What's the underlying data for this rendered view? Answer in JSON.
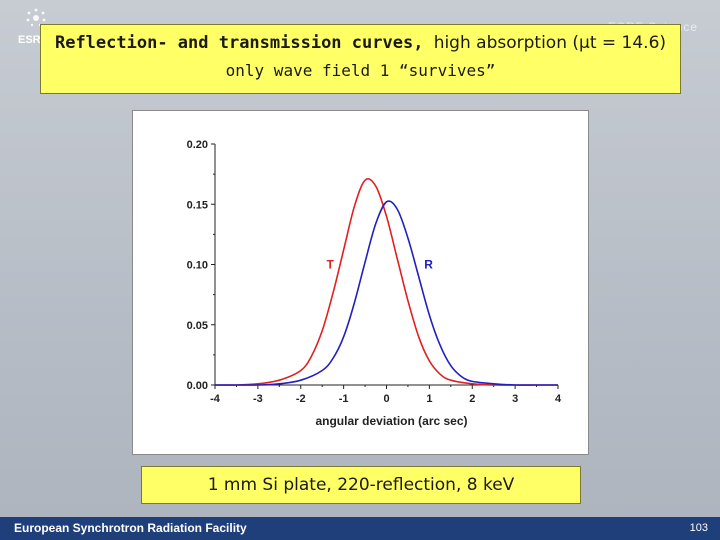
{
  "header": {
    "logo_text": "ESRF",
    "banner_text": "ESRF Science"
  },
  "title": {
    "line1_bold": "Reflection- and transmission curves,",
    "line1_plain": "high absorption (μt = 14.6)",
    "line2": "only wave field 1 “survives”"
  },
  "caption": "1 mm Si plate, 220-reflection, 8 keV",
  "footer": {
    "text": "European Synchrotron Radiation Facility",
    "page_number": "103"
  },
  "colors": {
    "T": "#e02020",
    "R": "#2020c0",
    "title_bg": "#ffff66",
    "footer_bg": "#1f3f7a"
  },
  "chart_data": {
    "type": "line",
    "title": "",
    "xlabel": "angular deviation (arc sec)",
    "ylabel": "",
    "xlim": [
      -4,
      4
    ],
    "ylim": [
      0,
      0.2
    ],
    "x_ticks": [
      "-4",
      "-3",
      "-2",
      "-1",
      "0",
      "1",
      "2",
      "3",
      "4"
    ],
    "y_ticks": [
      "0.00",
      "0.05",
      "0.10",
      "0.15",
      "0.20"
    ],
    "series": [
      {
        "name": "T",
        "x": [
          -4.0,
          -3.5,
          -3.0,
          -2.5,
          -2.0,
          -1.75,
          -1.5,
          -1.25,
          -1.0,
          -0.75,
          -0.5,
          -0.25,
          0.0,
          0.25,
          0.5,
          0.75,
          1.0,
          1.25,
          1.5,
          2.0,
          2.5,
          3.0,
          3.5,
          4.0
        ],
        "values": [
          0.0,
          0.0,
          0.001,
          0.004,
          0.012,
          0.024,
          0.045,
          0.076,
          0.112,
          0.148,
          0.17,
          0.165,
          0.14,
          0.105,
          0.07,
          0.04,
          0.02,
          0.009,
          0.004,
          0.001,
          0.0,
          0.0,
          0.0,
          0.0
        ]
      },
      {
        "name": "R",
        "x": [
          -4.0,
          -3.5,
          -3.0,
          -2.5,
          -2.0,
          -1.5,
          -1.25,
          -1.0,
          -0.75,
          -0.5,
          -0.25,
          0.0,
          0.25,
          0.5,
          0.75,
          1.0,
          1.25,
          1.5,
          1.75,
          2.0,
          2.5,
          3.0,
          3.5,
          4.0
        ],
        "values": [
          0.0,
          0.0,
          0.0,
          0.001,
          0.004,
          0.012,
          0.022,
          0.04,
          0.068,
          0.102,
          0.134,
          0.152,
          0.146,
          0.122,
          0.09,
          0.058,
          0.033,
          0.016,
          0.007,
          0.003,
          0.001,
          0.0,
          0.0,
          0.0
        ]
      }
    ],
    "annotations": [
      {
        "text": "T",
        "x": -1.4,
        "y": 0.1
      },
      {
        "text": "R",
        "x": 0.88,
        "y": 0.1
      }
    ]
  }
}
